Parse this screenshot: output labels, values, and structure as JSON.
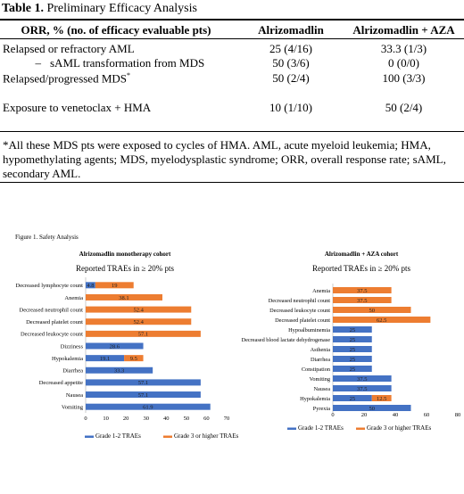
{
  "table": {
    "title_bold": "Table 1.",
    "title_rest": " Preliminary Efficacy Analysis",
    "headers": [
      "ORR, % (no. of efficacy evaluable pts)",
      "Alrizomadlin",
      "Alrizomadlin + AZA"
    ],
    "rows": [
      {
        "label": "Relapsed or refractory AML",
        "dash": "",
        "sup": "",
        "mono": "25 (4/16)",
        "combo": "33.3 (1/3)"
      },
      {
        "label": "sAML transformation from MDS",
        "dash": "–",
        "sup": "",
        "mono": "50 (3/6)",
        "combo": "0 (0/0)"
      },
      {
        "label": "Relapsed/progressed MDS",
        "dash": "",
        "sup": "*",
        "mono": "50 (2/4)",
        "combo": "100 (3/3)"
      },
      {
        "label": "Exposure to venetoclax + HMA",
        "dash": "",
        "sup": "",
        "mono": "10 (1/10)",
        "combo": "50 (2/4)"
      }
    ],
    "footnote": "*All these MDS pts were exposed to cycles of HMA. AML, acute myeloid leukemia; HMA, hypomethylating agents; MDS, myelodysplastic syndrome; ORR, overall response rate; sAML, secondary AML."
  },
  "figure": {
    "title": "Figure 1. Safety Analysis",
    "left_title": "Alrizomadlin monotherapy cohort",
    "left_subtitle": "Reported TRAEs in ≥ 20% pts",
    "right_title": "Alrizomadlin + AZA cohort",
    "right_subtitle": "Reported TRAEs in ≥ 20% pts",
    "legend": [
      "Grade 1-2 TRAEs",
      "Grade 3 or higher TRAEs"
    ]
  },
  "colors": {
    "grade12": "#4472C4",
    "grade3": "#ED7D31"
  },
  "chart_data": [
    {
      "type": "bar",
      "orientation": "horizontal",
      "stacked": true,
      "title": "Alrizomadlin monotherapy cohort",
      "subtitle": "Reported TRAEs in ≥ 20% pts",
      "categories": [
        "Decreased lymphocyte count",
        "Anemia",
        "Decreased neutrophil count",
        "Decreased platelet count",
        "Decreased leukocyte count",
        "Dizziness",
        "Hypokalemia",
        "Diarrhea",
        "Decreased appetite",
        "Nausea",
        "Vomiting"
      ],
      "series": [
        {
          "name": "Grade 1-2 TRAEs",
          "values": [
            4.8,
            0,
            0,
            0,
            0,
            28.6,
            19.1,
            33.3,
            57.1,
            57.1,
            61.9
          ],
          "labels": [
            "4.8",
            "",
            "",
            "",
            "",
            "28.6",
            "19.1",
            "33.3",
            "57.1",
            "57.1",
            "61.9"
          ]
        },
        {
          "name": "Grade 3 or higher TRAEs",
          "values": [
            19,
            38.1,
            52.4,
            52.4,
            57.1,
            0,
            9.5,
            0,
            0,
            0,
            0
          ],
          "labels": [
            "19",
            "38.1",
            "52.4",
            "52.4",
            "57.1",
            "",
            "9.5",
            "",
            "",
            "",
            ""
          ]
        }
      ],
      "xlim": [
        0,
        70
      ],
      "xticks": [
        "0",
        "10",
        "20",
        "30",
        "40",
        "50",
        "60",
        "70"
      ],
      "legend": "bottom"
    },
    {
      "type": "bar",
      "orientation": "horizontal",
      "stacked": true,
      "title": "Alrizomadlin + AZA cohort",
      "subtitle": "Reported TRAEs in ≥ 20% pts",
      "categories": [
        "Anemia",
        "Decreased neutrophil count",
        "Decreased leukocyte count",
        "Decreased platelet count",
        "Hypoalbuminemia",
        "Decreased blood lactate dehydrogenase",
        "Asthenia",
        "Diarrhea",
        "Constipation",
        "Vomiting",
        "Nausea",
        "Hypokalemia",
        "Pyrexia"
      ],
      "series": [
        {
          "name": "Grade 1-2 TRAEs",
          "values": [
            0,
            0,
            0,
            0,
            25,
            25,
            25,
            25,
            25,
            37.5,
            37.5,
            25,
            50
          ],
          "labels": [
            "",
            "",
            "",
            "",
            "25",
            "25",
            "25",
            "25",
            "25",
            "37.5",
            "37.5",
            "25",
            "50"
          ]
        },
        {
          "name": "Grade 3 or higher TRAEs",
          "values": [
            37.5,
            37.5,
            50,
            62.5,
            0,
            0,
            0,
            0,
            0,
            0,
            0,
            12.5,
            0
          ],
          "labels": [
            "37.5",
            "37.5",
            "50",
            "62.5",
            "",
            "",
            "",
            "",
            "",
            "",
            "",
            "12.5",
            ""
          ]
        }
      ],
      "xlim": [
        0,
        80
      ],
      "xticks": [
        "0",
        "20",
        "40",
        "60",
        "80"
      ],
      "legend": "bottom"
    }
  ]
}
